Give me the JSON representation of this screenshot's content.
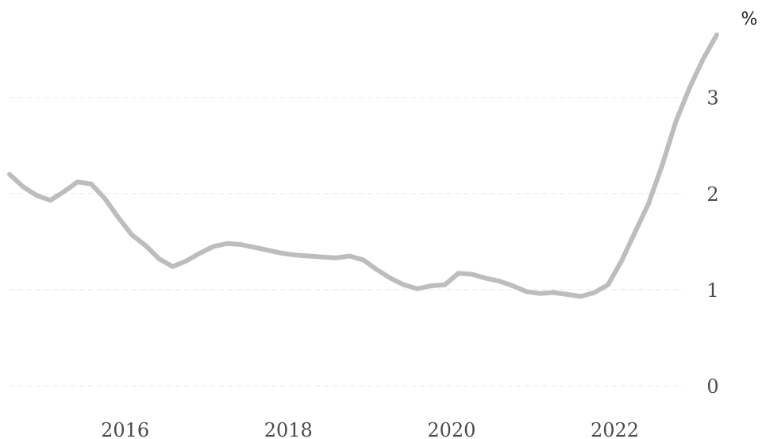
{
  "chart_data": {
    "type": "line",
    "unit": "%",
    "grid": true,
    "ylim": [
      0,
      3.6
    ],
    "xlim": [
      "2015-02",
      "2023-10"
    ],
    "xticks": [
      "2016",
      "2018",
      "2020",
      "2022"
    ],
    "yticks": [
      "0",
      "1",
      "2",
      "3"
    ],
    "colors": {
      "line": "#bdbdbd",
      "grid": "#ececec",
      "text": "#4a4a4a"
    },
    "series": [
      {
        "x": [
          "2015-02",
          "2015-04",
          "2015-06",
          "2015-08",
          "2015-10",
          "2015-12",
          "2016-02",
          "2016-04",
          "2016-06",
          "2016-08",
          "2016-10",
          "2016-12",
          "2017-02",
          "2017-04",
          "2017-06",
          "2017-08",
          "2017-10",
          "2017-12",
          "2018-02",
          "2018-04",
          "2018-06",
          "2018-08",
          "2018-10",
          "2018-12",
          "2019-02",
          "2019-04",
          "2019-06",
          "2019-08",
          "2019-10",
          "2019-12",
          "2020-02",
          "2020-04",
          "2020-06",
          "2020-08",
          "2020-10",
          "2020-12",
          "2021-02",
          "2021-04",
          "2021-06",
          "2021-08",
          "2021-10",
          "2021-12",
          "2022-02",
          "2022-04",
          "2022-06",
          "2022-08",
          "2022-10",
          "2022-12",
          "2023-02",
          "2023-04",
          "2023-06",
          "2023-08",
          "2023-10"
        ],
        "y": [
          2.2,
          2.07,
          1.98,
          1.93,
          2.02,
          2.12,
          2.1,
          1.95,
          1.75,
          1.57,
          1.46,
          1.32,
          1.24,
          1.3,
          1.38,
          1.45,
          1.48,
          1.47,
          1.44,
          1.41,
          1.38,
          1.36,
          1.35,
          1.34,
          1.33,
          1.35,
          1.31,
          1.21,
          1.12,
          1.05,
          1.01,
          1.04,
          1.05,
          1.17,
          1.16,
          1.12,
          1.09,
          1.04,
          0.98,
          0.96,
          0.97,
          0.95,
          0.93,
          0.97,
          1.05,
          1.3,
          1.6,
          1.9,
          2.3,
          2.75,
          3.1,
          3.4,
          3.65
        ]
      }
    ]
  }
}
